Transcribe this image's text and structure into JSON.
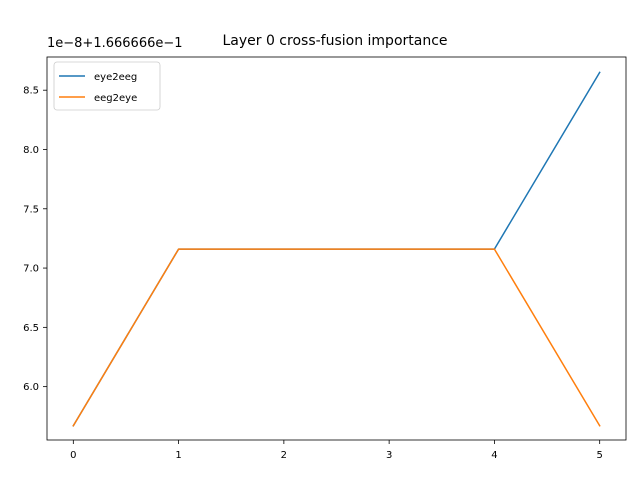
{
  "chart_data": {
    "type": "line",
    "title": "Layer 0 cross-fusion importance",
    "offset_text": "1e−8+1.666666e−1",
    "xlabel": "",
    "ylabel": "",
    "xlim": [
      -0.25,
      5.25
    ],
    "ylim": [
      5.55,
      8.78
    ],
    "x": [
      0,
      1,
      2,
      3,
      4,
      5
    ],
    "x_ticks": [
      "0",
      "1",
      "2",
      "3",
      "4",
      "5"
    ],
    "y_ticks": [
      "6.0",
      "6.5",
      "7.0",
      "7.5",
      "8.0",
      "8.5"
    ],
    "y_tick_values": [
      6.0,
      6.5,
      7.0,
      7.5,
      8.0,
      8.5
    ],
    "series": [
      {
        "name": "eye2eeg",
        "color": "#1f77b4",
        "values": [
          5.67,
          7.16,
          7.16,
          7.16,
          7.16,
          8.65
        ]
      },
      {
        "name": "eeg2eye",
        "color": "#ff7f0e",
        "values": [
          5.67,
          7.16,
          7.16,
          7.16,
          7.16,
          5.67
        ]
      }
    ],
    "grid": false,
    "legend_position": "upper-left"
  }
}
